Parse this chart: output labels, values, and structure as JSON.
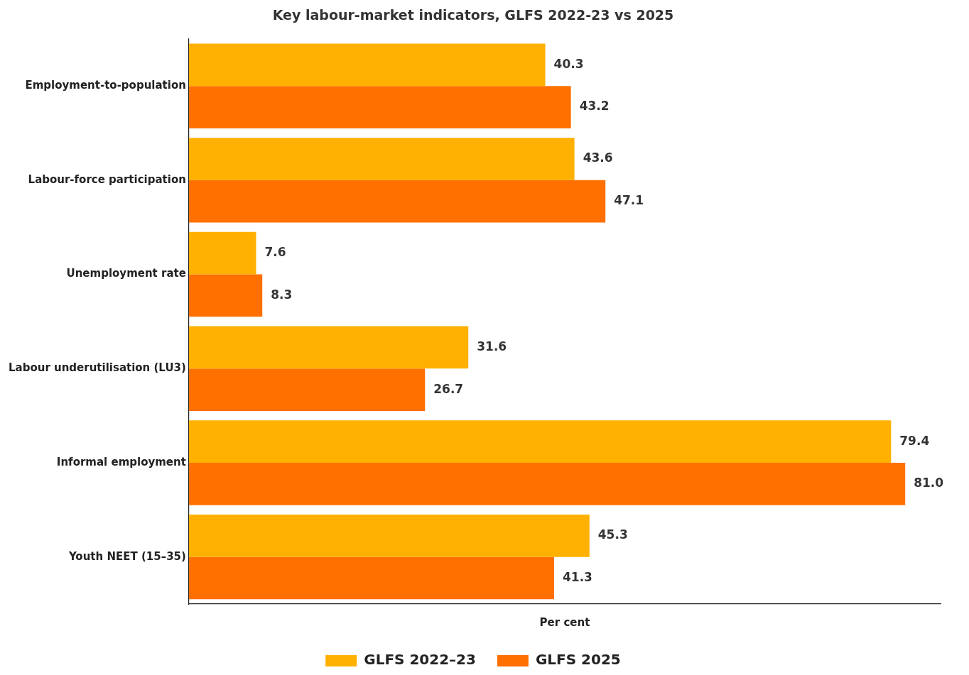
{
  "chart_data": {
    "type": "bar",
    "orientation": "horizontal",
    "title": "Key labour-market indicators, GLFS 2022-23 vs 2025",
    "xlabel": "Per cent",
    "categories": [
      "Employment-to-population",
      "Labour-force participation",
      "Unemployment rate",
      "Labour underutilisation (LU3)",
      "Informal employment",
      "Youth NEET (15–35)"
    ],
    "series": [
      {
        "name": "GLFS 2022–23",
        "color": "#ffb000",
        "values": [
          40.3,
          43.6,
          7.6,
          31.6,
          79.4,
          45.3
        ],
        "value_labels": [
          "40.3",
          "43.6",
          "7.6",
          "31.6",
          "79.4",
          "45.3"
        ]
      },
      {
        "name": "GLFS 2025",
        "color": "#ff7000",
        "values": [
          43.2,
          47.1,
          8.3,
          26.7,
          81.0,
          41.3
        ],
        "value_labels": [
          "43.2",
          "47.1",
          "8.3",
          "26.7",
          "81.0",
          "41.3"
        ]
      }
    ],
    "xlim": [
      0,
      85
    ],
    "tick_labels": "y",
    "legend": "bottom"
  }
}
